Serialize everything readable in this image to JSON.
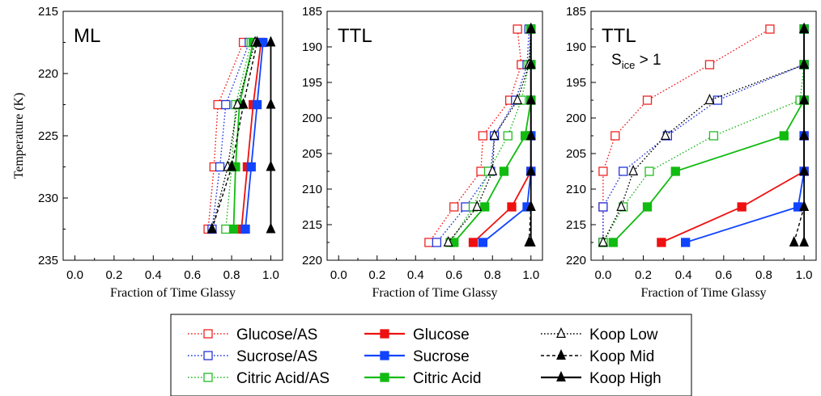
{
  "figure": {
    "xlabel": "Fraction of Time Glassy",
    "ylabel": "Temperature (K)"
  },
  "chart_data": [
    {
      "type": "line",
      "panel_label": "ML",
      "subtitle": "",
      "xlim": [
        0,
        1
      ],
      "ylim": [
        235,
        215
      ],
      "y_inverted": true,
      "x_ticks": [
        "0.0",
        "0.2",
        "0.4",
        "0.6",
        "0.8",
        "1.0"
      ],
      "y_ticks": [
        "215",
        "220",
        "225",
        "230",
        "235"
      ],
      "xlabel": "Fraction of Time Glassy",
      "ylabel": "Temperature (K)",
      "series": [
        {
          "name": "Glucose/AS",
          "color": "#ee2222",
          "dash": "dotted",
          "marker": "open-square",
          "points": [
            [
              0.68,
              232.5
            ],
            [
              0.71,
              227.5
            ],
            [
              0.73,
              222.5
            ],
            [
              0.86,
              217.5
            ]
          ]
        },
        {
          "name": "Sucrose/AS",
          "color": "#2233dd",
          "dash": "dotted",
          "marker": "open-square",
          "points": [
            [
              0.7,
              232.5
            ],
            [
              0.74,
              227.5
            ],
            [
              0.77,
              222.5
            ],
            [
              0.89,
              217.5
            ]
          ]
        },
        {
          "name": "Citric Acid/AS",
          "color": "#22bb22",
          "dash": "dotted",
          "marker": "open-square",
          "points": [
            [
              0.77,
              232.5
            ],
            [
              0.8,
              227.5
            ],
            [
              0.82,
              222.5
            ],
            [
              0.9,
              217.5
            ]
          ]
        },
        {
          "name": "Glucose",
          "color": "#ee1111",
          "dash": "solid",
          "marker": "filled-square",
          "points": [
            [
              0.85,
              232.5
            ],
            [
              0.88,
              227.5
            ],
            [
              0.91,
              222.5
            ],
            [
              0.95,
              217.5
            ]
          ]
        },
        {
          "name": "Sucrose",
          "color": "#1144ff",
          "dash": "solid",
          "marker": "filled-square",
          "points": [
            [
              0.87,
              232.5
            ],
            [
              0.9,
              227.5
            ],
            [
              0.93,
              222.5
            ],
            [
              0.96,
              217.5
            ]
          ]
        },
        {
          "name": "Citric Acid",
          "color": "#11bb11",
          "dash": "solid",
          "marker": "filled-square",
          "points": [
            [
              0.81,
              232.5
            ],
            [
              0.82,
              227.5
            ],
            [
              0.84,
              222.5
            ],
            [
              0.91,
              217.5
            ]
          ]
        },
        {
          "name": "Koop Low",
          "color": "#000000",
          "dash": "dotted",
          "marker": "open-triangle",
          "points": [
            [
              0.7,
              232.5
            ],
            [
              0.78,
              227.5
            ],
            [
              0.83,
              222.5
            ],
            [
              0.92,
              217.5
            ]
          ]
        },
        {
          "name": "Koop Mid",
          "color": "#000000",
          "dash": "dashed",
          "marker": "filled-triangle",
          "points": [
            [
              0.7,
              232.5
            ],
            [
              0.8,
              227.5
            ],
            [
              0.86,
              222.5
            ],
            [
              0.93,
              217.5
            ]
          ]
        },
        {
          "name": "Koop High",
          "color": "#000000",
          "dash": "solid",
          "marker": "filled-triangle",
          "points": [
            [
              1.0,
              232.5
            ],
            [
              1.0,
              227.5
            ],
            [
              1.0,
              222.5
            ],
            [
              1.0,
              217.5
            ]
          ]
        }
      ]
    },
    {
      "type": "line",
      "panel_label": "TTL",
      "subtitle": "",
      "xlim": [
        0,
        1
      ],
      "ylim": [
        220,
        185
      ],
      "y_inverted": true,
      "x_ticks": [
        "0.0",
        "0.2",
        "0.4",
        "0.6",
        "0.8",
        "1.0"
      ],
      "y_ticks": [
        "185",
        "190",
        "195",
        "200",
        "205",
        "210",
        "215",
        "220"
      ],
      "xlabel": "Fraction of Time Glassy",
      "ylabel": "",
      "series": [
        {
          "name": "Glucose/AS",
          "color": "#ee2222",
          "dash": "dotted",
          "marker": "open-square",
          "points": [
            [
              0.47,
              217.5
            ],
            [
              0.6,
              212.5
            ],
            [
              0.74,
              207.5
            ],
            [
              0.75,
              202.5
            ],
            [
              0.89,
              197.5
            ],
            [
              0.95,
              192.5
            ],
            [
              0.93,
              187.5
            ]
          ]
        },
        {
          "name": "Sucrose/AS",
          "color": "#2233dd",
          "dash": "dotted",
          "marker": "open-square",
          "points": [
            [
              0.51,
              217.5
            ],
            [
              0.66,
              212.5
            ],
            [
              0.79,
              207.5
            ],
            [
              0.81,
              202.5
            ],
            [
              0.92,
              197.5
            ],
            [
              0.98,
              192.5
            ],
            [
              0.99,
              187.5
            ]
          ]
        },
        {
          "name": "Citric Acid/AS",
          "color": "#22bb22",
          "dash": "dotted",
          "marker": "open-square",
          "points": [
            [
              0.58,
              217.5
            ],
            [
              0.7,
              212.5
            ],
            [
              0.78,
              207.5
            ],
            [
              0.88,
              202.5
            ],
            [
              0.95,
              197.5
            ],
            [
              0.99,
              192.5
            ],
            [
              1.0,
              187.5
            ]
          ]
        },
        {
          "name": "Glucose",
          "color": "#ee1111",
          "dash": "solid",
          "marker": "filled-square",
          "points": [
            [
              0.7,
              217.5
            ],
            [
              0.9,
              212.5
            ],
            [
              1.0,
              207.5
            ],
            [
              1.0,
              202.5
            ],
            [
              1.0,
              197.5
            ],
            [
              1.0,
              192.5
            ],
            [
              1.0,
              187.5
            ]
          ]
        },
        {
          "name": "Sucrose",
          "color": "#1144ff",
          "dash": "solid",
          "marker": "filled-square",
          "points": [
            [
              0.75,
              217.5
            ],
            [
              0.98,
              212.5
            ],
            [
              1.0,
              207.5
            ],
            [
              1.0,
              202.5
            ],
            [
              1.0,
              197.5
            ],
            [
              1.0,
              192.5
            ],
            [
              1.0,
              187.5
            ]
          ]
        },
        {
          "name": "Citric Acid",
          "color": "#11bb11",
          "dash": "solid",
          "marker": "filled-square",
          "points": [
            [
              0.6,
              217.5
            ],
            [
              0.76,
              212.5
            ],
            [
              0.86,
              207.5
            ],
            [
              0.97,
              202.5
            ],
            [
              1.0,
              197.5
            ],
            [
              1.0,
              192.5
            ],
            [
              1.0,
              187.5
            ]
          ]
        },
        {
          "name": "Koop Low",
          "color": "#000000",
          "dash": "dotted",
          "marker": "open-triangle",
          "points": [
            [
              0.57,
              217.5
            ],
            [
              0.72,
              212.5
            ],
            [
              0.8,
              207.5
            ],
            [
              0.81,
              202.5
            ],
            [
              0.93,
              197.5
            ],
            [
              0.99,
              192.5
            ],
            [
              1.0,
              187.5
            ]
          ]
        },
        {
          "name": "Koop Mid",
          "color": "#000000",
          "dash": "dashed",
          "marker": "filled-triangle",
          "points": [
            [
              0.99,
              217.5
            ],
            [
              1.0,
              212.5
            ],
            [
              1.0,
              207.5
            ],
            [
              1.0,
              202.5
            ],
            [
              1.0,
              197.5
            ],
            [
              1.0,
              192.5
            ],
            [
              1.0,
              187.5
            ]
          ]
        },
        {
          "name": "Koop High",
          "color": "#000000",
          "dash": "solid",
          "marker": "filled-triangle",
          "points": [
            [
              1.0,
              217.5
            ],
            [
              1.0,
              212.5
            ],
            [
              1.0,
              207.5
            ],
            [
              1.0,
              202.5
            ],
            [
              1.0,
              197.5
            ],
            [
              1.0,
              192.5
            ],
            [
              1.0,
              187.5
            ]
          ]
        }
      ]
    },
    {
      "type": "line",
      "panel_label": "TTL",
      "subtitle": {
        "base": "S",
        "sub": "ice",
        "rest": " > 1"
      },
      "xlim": [
        0,
        1
      ],
      "ylim": [
        220,
        185
      ],
      "y_inverted": true,
      "x_ticks": [
        "0.0",
        "0.2",
        "0.4",
        "0.6",
        "0.8",
        "1.0"
      ],
      "y_ticks": [
        "185",
        "190",
        "195",
        "200",
        "205",
        "210",
        "215",
        "220"
      ],
      "xlabel": "Fraction of Time Glassy",
      "ylabel": "",
      "series": [
        {
          "name": "Glucose/AS",
          "color": "#ee2222",
          "dash": "dotted",
          "marker": "open-square",
          "points": [
            [
              0.0,
              217.5
            ],
            [
              0.0,
              212.5
            ],
            [
              0.0,
              207.5
            ],
            [
              0.06,
              202.5
            ],
            [
              0.22,
              197.5
            ],
            [
              0.53,
              192.5
            ],
            [
              0.83,
              187.5
            ]
          ]
        },
        {
          "name": "Sucrose/AS",
          "color": "#2233dd",
          "dash": "dotted",
          "marker": "open-square",
          "points": [
            [
              0.0,
              217.5
            ],
            [
              0.0,
              212.5
            ],
            [
              0.1,
              207.5
            ],
            [
              0.32,
              202.5
            ],
            [
              0.57,
              197.5
            ],
            [
              1.0,
              192.5
            ],
            [
              1.0,
              187.5
            ]
          ]
        },
        {
          "name": "Citric Acid/AS",
          "color": "#22bb22",
          "dash": "dotted",
          "marker": "open-square",
          "points": [
            [
              0.0,
              217.5
            ],
            [
              0.1,
              212.5
            ],
            [
              0.23,
              207.5
            ],
            [
              0.55,
              202.5
            ],
            [
              0.98,
              197.5
            ],
            [
              1.0,
              192.5
            ],
            [
              1.0,
              187.5
            ]
          ]
        },
        {
          "name": "Glucose",
          "color": "#ee1111",
          "dash": "solid",
          "marker": "filled-square",
          "points": [
            [
              0.29,
              217.5
            ],
            [
              0.69,
              212.5
            ],
            [
              1.0,
              207.5
            ],
            [
              1.0,
              202.5
            ],
            [
              1.0,
              197.5
            ],
            [
              1.0,
              192.5
            ],
            [
              1.0,
              187.5
            ]
          ]
        },
        {
          "name": "Sucrose",
          "color": "#1144ff",
          "dash": "solid",
          "marker": "filled-square",
          "points": [
            [
              0.41,
              217.5
            ],
            [
              0.97,
              212.5
            ],
            [
              1.0,
              207.5
            ],
            [
              1.0,
              202.5
            ],
            [
              1.0,
              197.5
            ],
            [
              1.0,
              192.5
            ],
            [
              1.0,
              187.5
            ]
          ]
        },
        {
          "name": "Citric Acid",
          "color": "#11bb11",
          "dash": "solid",
          "marker": "filled-square",
          "points": [
            [
              0.05,
              217.5
            ],
            [
              0.22,
              212.5
            ],
            [
              0.36,
              207.5
            ],
            [
              0.9,
              202.5
            ],
            [
              1.0,
              197.5
            ],
            [
              1.0,
              192.5
            ],
            [
              1.0,
              187.5
            ]
          ]
        },
        {
          "name": "Koop Low",
          "color": "#000000",
          "dash": "dotted",
          "marker": "open-triangle",
          "points": [
            [
              0.0,
              217.5
            ],
            [
              0.09,
              212.5
            ],
            [
              0.15,
              207.5
            ],
            [
              0.31,
              202.5
            ],
            [
              0.53,
              197.5
            ],
            [
              1.0,
              192.5
            ],
            [
              1.0,
              187.5
            ]
          ]
        },
        {
          "name": "Koop Mid",
          "color": "#000000",
          "dash": "dashed",
          "marker": "filled-triangle",
          "points": [
            [
              0.95,
              217.5
            ],
            [
              1.0,
              212.5
            ],
            [
              1.0,
              207.5
            ],
            [
              1.0,
              202.5
            ],
            [
              1.0,
              197.5
            ],
            [
              1.0,
              192.5
            ],
            [
              1.0,
              187.5
            ]
          ]
        },
        {
          "name": "Koop High",
          "color": "#000000",
          "dash": "solid",
          "marker": "filled-triangle",
          "points": [
            [
              1.0,
              217.5
            ],
            [
              1.0,
              212.5
            ],
            [
              1.0,
              207.5
            ],
            [
              1.0,
              202.5
            ],
            [
              1.0,
              197.5
            ],
            [
              1.0,
              192.5
            ],
            [
              1.0,
              187.5
            ]
          ]
        }
      ]
    }
  ],
  "legend": {
    "placement": "bottom-center",
    "columns": [
      [
        "Glucose/AS",
        "Sucrose/AS",
        "Citric Acid/AS"
      ],
      [
        "Glucose",
        "Sucrose",
        "Citric Acid"
      ],
      [
        "Koop Low",
        "Koop Mid",
        "Koop High"
      ]
    ]
  }
}
